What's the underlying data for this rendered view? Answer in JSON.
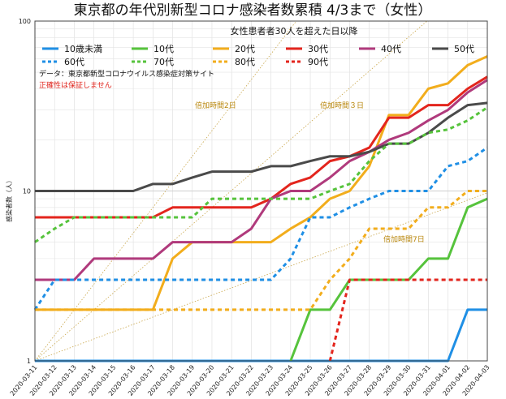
{
  "chart_data": {
    "type": "line",
    "title": "東京都の年代別新型コロナ感染者数累積 4/3まで（女性）",
    "subtitle": "女性患者者30人を超えた日以降",
    "ylabel": "感染者数（人）",
    "yscale": "log",
    "ylim": [
      1,
      100
    ],
    "yticks": [
      "1",
      "10",
      "100"
    ],
    "categories": [
      "2020-03-11",
      "2020-03-12",
      "2020-03-13",
      "2020-03-14",
      "2020-03-15",
      "2020-03-16",
      "2020-03-17",
      "2020-03-18",
      "2020-03-19",
      "2020-03-20",
      "2020-03-21",
      "2020-03-22",
      "2020-03-23",
      "2020-03-24",
      "2020-03-25",
      "2020-03-26",
      "2020-03-27",
      "2020-03-28",
      "2020-03-29",
      "2020-03-30",
      "2020-03-31",
      "2020-04-01",
      "2020-04-02",
      "2020-04-03"
    ],
    "note": "データ：東京都新型コロナウイルス感染症対策サイト",
    "warning": "正確性は保証しません",
    "doubling_lines": [
      {
        "label": "倍加時間2日",
        "days": 2,
        "start": 1
      },
      {
        "label": "倍加時間３日",
        "days": 3,
        "start": 1
      },
      {
        "label": "倍加時間7日",
        "days": 7,
        "start": 1
      }
    ],
    "series": [
      {
        "name": "10歳未満",
        "color": "#1f8fe5",
        "dash": false,
        "values": [
          1,
          1,
          1,
          1,
          1,
          1,
          1,
          1,
          1,
          1,
          1,
          1,
          1,
          1,
          1,
          1,
          1,
          1,
          1,
          1,
          1,
          1,
          2,
          2
        ]
      },
      {
        "name": "10代",
        "color": "#56c33c",
        "dash": false,
        "values": [
          null,
          null,
          null,
          null,
          null,
          null,
          null,
          null,
          null,
          null,
          null,
          null,
          null,
          1,
          2,
          2,
          3,
          3,
          3,
          3,
          4,
          4,
          8,
          9
        ]
      },
      {
        "name": "20代",
        "color": "#f2ad1c",
        "dash": false,
        "values": [
          2,
          2,
          2,
          2,
          2,
          2,
          2,
          4,
          5,
          5,
          5,
          5,
          5,
          6,
          7,
          9,
          10,
          14,
          28,
          28,
          40,
          43,
          55,
          62
        ]
      },
      {
        "name": "30代",
        "color": "#e3251d",
        "dash": false,
        "values": [
          7,
          7,
          7,
          7,
          7,
          7,
          7,
          8,
          8,
          8,
          8,
          8,
          9,
          11,
          12,
          15,
          16,
          18,
          27,
          27,
          32,
          32,
          40,
          47
        ]
      },
      {
        "name": "40代",
        "color": "#b03a7c",
        "dash": false,
        "values": [
          3,
          3,
          3,
          4,
          4,
          4,
          4,
          5,
          5,
          5,
          5,
          6,
          9,
          10,
          10,
          12,
          15,
          17,
          20,
          22,
          26,
          30,
          38,
          45
        ]
      },
      {
        "name": "50代",
        "color": "#4a4a4a",
        "dash": false,
        "values": [
          10,
          10,
          10,
          10,
          10,
          10,
          11,
          11,
          12,
          13,
          13,
          13,
          14,
          14,
          15,
          16,
          16,
          17,
          19,
          19,
          22,
          27,
          32,
          33
        ]
      },
      {
        "name": "60代",
        "color": "#1f8fe5",
        "dash": true,
        "values": [
          2,
          3,
          3,
          3,
          3,
          3,
          3,
          3,
          3,
          3,
          3,
          3,
          3,
          4,
          7,
          7,
          8,
          9,
          10,
          10,
          10,
          14,
          15,
          18
        ]
      },
      {
        "name": "70代",
        "color": "#56c33c",
        "dash": true,
        "values": [
          5,
          6,
          7,
          7,
          7,
          7,
          7,
          7,
          7,
          9,
          9,
          9,
          9,
          9,
          9,
          10,
          11,
          15,
          19,
          19,
          22,
          23,
          26,
          31
        ]
      },
      {
        "name": "80代",
        "color": "#f2ad1c",
        "dash": true,
        "values": [
          2,
          2,
          2,
          2,
          2,
          2,
          2,
          2,
          2,
          2,
          2,
          2,
          2,
          2,
          2,
          3,
          4,
          6,
          6,
          6,
          8,
          8,
          10,
          10
        ]
      },
      {
        "name": "90代",
        "color": "#e3251d",
        "dash": true,
        "values": [
          null,
          null,
          null,
          null,
          null,
          null,
          null,
          null,
          null,
          null,
          null,
          null,
          null,
          null,
          null,
          1,
          3,
          3,
          3,
          3,
          3,
          3,
          3,
          3
        ]
      }
    ]
  }
}
